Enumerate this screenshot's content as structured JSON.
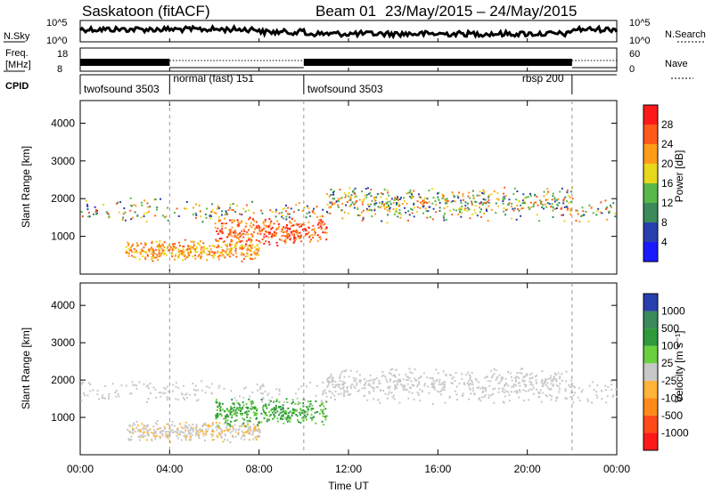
{
  "header": {
    "station": "Saskatoon (fitACF)",
    "beam": "Beam 01",
    "period": "23/May/2015 – 24/May/2015"
  },
  "top_panel": {
    "nsky_label": "N.Sky",
    "nsky_ticks": [
      "10^5",
      "10^0"
    ],
    "nsearch_label": "N.Search",
    "nsearch_ticks": [
      "10^5",
      "10^0"
    ],
    "freq_label_1": "Freq.",
    "freq_label_2": "[MHz]",
    "freq_ticks": [
      "18",
      "8"
    ],
    "nave_label": "Nave",
    "nave_ticks": [
      "60",
      "0"
    ],
    "cpid_label": "CPID"
  },
  "cpid_segments": [
    {
      "label": "twofsound 3503",
      "start_hour": 0
    },
    {
      "label": "normal (fast) 151",
      "start_hour": 4
    },
    {
      "label": "twofsound 3503",
      "start_hour": 10
    },
    {
      "label": "rbsp 200",
      "start_hour": 22
    }
  ],
  "chart_data": [
    {
      "type": "heatmap",
      "title": "",
      "ylabel": "Slant Range [km]",
      "xlabel": "Time UT",
      "ylim": [
        0,
        4600
      ],
      "yticks": [
        "1000",
        "2000",
        "3000",
        "4000"
      ],
      "colorbar_label": "Power [dB]",
      "colorbar_ticks": [
        "4",
        "8",
        "12",
        "16",
        "20",
        "24",
        "28"
      ],
      "colors": [
        "#1a1aff",
        "#2a3fae",
        "#3a8a5a",
        "#58b84a",
        "#e8d81a",
        "#ff9c1a",
        "#ff5a1a",
        "#ff1a1a"
      ]
    },
    {
      "type": "heatmap",
      "title": "",
      "ylabel": "Slant Range [km]",
      "xlabel": "Time UT",
      "ylim": [
        0,
        4600
      ],
      "yticks": [
        "1000",
        "2000",
        "3000",
        "4000"
      ],
      "colorbar_label": "Velocity [m s⁻¹]",
      "colorbar_ticks": [
        "1000",
        "500",
        "100",
        "25",
        "-25",
        "-100",
        "-500",
        "-1000"
      ],
      "colors": [
        "#2a3fae",
        "#3a8a5a",
        "#2e9a3a",
        "#6ad040",
        "#c8c8c8",
        "#ffb43a",
        "#ff8a1a",
        "#ff4a1a",
        "#ff1a1a"
      ]
    }
  ],
  "x_axis": {
    "label": "Time UT",
    "ticks": [
      "00:00",
      "04:00",
      "08:00",
      "12:00",
      "16:00",
      "20:00",
      "00:00"
    ],
    "tick_hours": [
      0,
      4,
      8,
      12,
      16,
      20,
      24
    ]
  }
}
